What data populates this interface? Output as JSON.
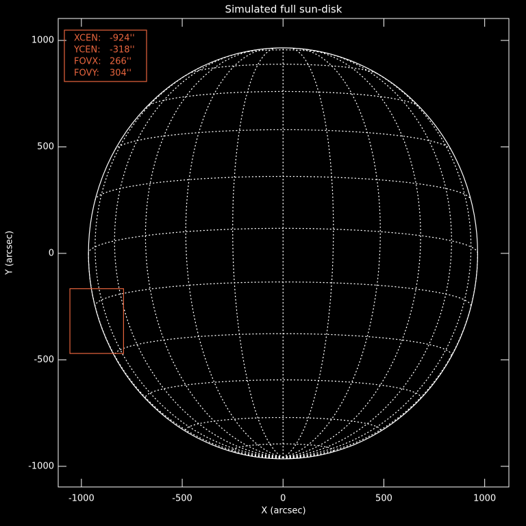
{
  "chart_data": {
    "type": "sun-disk",
    "title": "Simulated full sun-disk",
    "x_label": "X (arcsec)",
    "y_label": "Y (arcsec)",
    "xlim": [
      -1115,
      1120
    ],
    "ylim": [
      -1097,
      1103
    ],
    "xticks": [
      -1000,
      -500,
      0,
      500,
      1000
    ],
    "yticks": [
      -1000,
      -500,
      0,
      500,
      1000
    ],
    "sun_radius": 965,
    "grid_spacing_deg": 15,
    "b0_deg": -7,
    "axis_color": "#ffffff",
    "grid_color": "#ffffff",
    "fov": {
      "color": "#e8653e",
      "xcen": -924,
      "ycen": -318,
      "fovx": 266,
      "fovy": 304,
      "labels": [
        "XCEN:",
        "YCEN:",
        "FOVX:",
        "FOVY:"
      ],
      "value_labels": [
        "-924''",
        "-318''",
        "266''",
        "304''"
      ]
    }
  }
}
